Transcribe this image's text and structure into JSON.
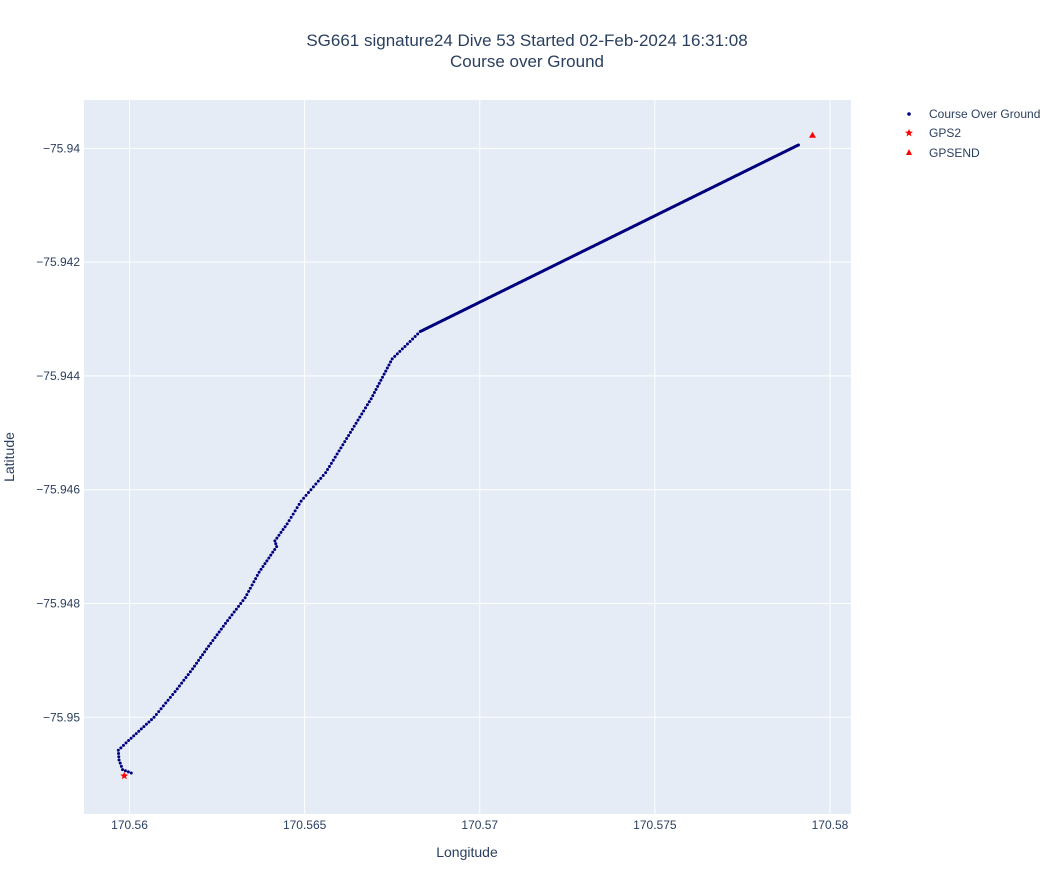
{
  "chart_data": {
    "type": "scatter",
    "title": "SG661 signature24 Dive 53 Started 02-Feb-2024 16:31:08",
    "subtitle": "Course over Ground",
    "xlabel": "Longitude",
    "ylabel": "Latitude",
    "xlim": [
      170.5587,
      170.5806
    ],
    "ylim": [
      -75.9517,
      -75.93915
    ],
    "x_ticks": [
      170.56,
      170.565,
      170.57,
      170.575,
      170.58
    ],
    "x_tick_labels": [
      "170.56",
      "170.565",
      "170.57",
      "170.575",
      "170.58"
    ],
    "y_ticks": [
      -75.94,
      -75.942,
      -75.944,
      -75.946,
      -75.948,
      -75.95
    ],
    "y_tick_labels": [
      "−75.94",
      "−75.942",
      "−75.944",
      "−75.946",
      "−75.948",
      "−75.95"
    ],
    "grid": true,
    "legend_position": "top-right",
    "series": [
      {
        "name": "Course Over Ground",
        "marker": "dot",
        "color": "#00007f",
        "path_points": [
          [
            170.56005,
            -75.95098
          ],
          [
            170.5598,
            -75.95092
          ],
          [
            170.5597,
            -75.95075
          ],
          [
            170.55968,
            -75.95058
          ],
          [
            170.5599,
            -75.95045
          ],
          [
            170.5607,
            -75.95
          ],
          [
            170.5613,
            -75.94955
          ],
          [
            170.5618,
            -75.94915
          ],
          [
            170.5622,
            -75.9488
          ],
          [
            170.5628,
            -75.9483
          ],
          [
            170.5633,
            -75.9479
          ],
          [
            170.5637,
            -75.94745
          ],
          [
            170.5642,
            -75.947
          ],
          [
            170.56415,
            -75.9469
          ],
          [
            170.5645,
            -75.9466
          ],
          [
            170.5649,
            -75.9462
          ],
          [
            170.5656,
            -75.9457
          ],
          [
            170.5662,
            -75.9451
          ],
          [
            170.5669,
            -75.9444
          ],
          [
            170.5675,
            -75.9437
          ],
          [
            170.5683,
            -75.94322
          ],
          [
            170.5791,
            -75.93994
          ]
        ],
        "dense_segment_start_index": 20
      },
      {
        "name": "GPS2",
        "marker": "star",
        "color": "#ff0000",
        "x": [
          170.55985
        ],
        "y": [
          -75.95103
        ]
      },
      {
        "name": "GPSEND",
        "marker": "triangle-up",
        "color": "#ff0000",
        "x": [
          170.5795
        ],
        "y": [
          -75.93977
        ]
      }
    ]
  }
}
